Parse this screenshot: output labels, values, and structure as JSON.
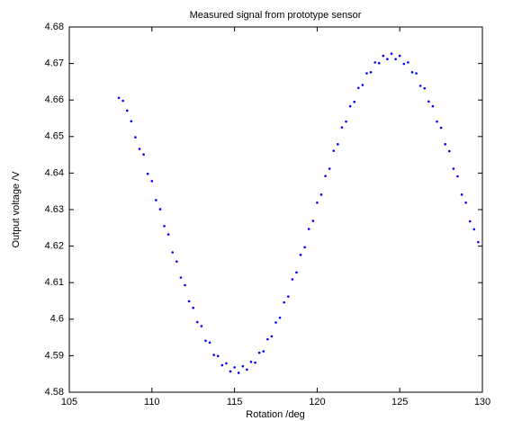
{
  "chart_data": {
    "type": "scatter",
    "title": "Measured signal from prototype sensor",
    "xlabel": "Rotation /deg",
    "ylabel": "Output voltage /V",
    "color": "#0000ff",
    "x": [
      108,
      108.25,
      108.5,
      108.75,
      109,
      109.25,
      109.5,
      109.75,
      110,
      110.25,
      110.5,
      110.75,
      111,
      111.25,
      111.5,
      111.75,
      112,
      112.25,
      112.5,
      112.75,
      113,
      113.25,
      113.5,
      113.75,
      114,
      114.25,
      114.5,
      114.75,
      115,
      115.25,
      115.5,
      115.75,
      116,
      116.25,
      116.5,
      116.75,
      117,
      117.25,
      117.5,
      117.75,
      118,
      118.25,
      118.5,
      118.75,
      119,
      119.25,
      119.5,
      119.75,
      120,
      120.25,
      120.5,
      120.75,
      121,
      121.25,
      121.5,
      121.75,
      122,
      122.25,
      122.5,
      122.75,
      123,
      123.25,
      123.5,
      123.75,
      124,
      124.25,
      124.5,
      124.75,
      125,
      125.25,
      125.5,
      125.75,
      126,
      126.25,
      126.5,
      126.75,
      127,
      127.25,
      127.5,
      127.75,
      128,
      128.25,
      128.5,
      128.75,
      129,
      129.25,
      129.5,
      129.75
    ],
    "values": [
      4.6606,
      4.6598,
      4.6571,
      4.6542,
      4.6498,
      4.6466,
      4.6451,
      4.6398,
      4.6378,
      4.6326,
      4.6301,
      4.6255,
      4.6232,
      4.6183,
      4.6158,
      4.6114,
      4.6093,
      4.6049,
      4.6031,
      4.5992,
      4.5981,
      4.5941,
      4.5936,
      4.5902,
      4.5899,
      4.5874,
      4.5879,
      4.5857,
      4.5868,
      4.5853,
      4.5871,
      4.5862,
      4.5883,
      4.5881,
      4.5908,
      4.5912,
      4.5945,
      4.5953,
      4.5991,
      4.6004,
      4.6046,
      4.6062,
      4.6109,
      4.6128,
      4.6176,
      4.6197,
      4.6247,
      4.6269,
      4.6319,
      4.6341,
      4.6392,
      4.6412,
      4.6461,
      4.6479,
      4.6525,
      4.6541,
      4.6583,
      4.6595,
      4.6633,
      4.6641,
      4.6673,
      4.6676,
      4.6703,
      4.6701,
      4.6721,
      4.6712,
      4.6727,
      4.6712,
      4.6721,
      4.6699,
      4.6703,
      4.6676,
      4.6673,
      4.6639,
      4.6632,
      4.6596,
      4.6583,
      4.6541,
      4.6524,
      4.6479,
      4.646,
      4.6412,
      4.6391,
      4.6341,
      4.6319,
      4.6268,
      4.6246,
      4.6211
    ],
    "xlim": [
      105,
      130
    ],
    "xticks": [
      105,
      110,
      115,
      120,
      125,
      130
    ],
    "ylim": [
      4.58,
      4.68
    ],
    "yticks": [
      4.58,
      4.59,
      4.6,
      4.61,
      4.62,
      4.63,
      4.64,
      4.65,
      4.66,
      4.67,
      4.68
    ]
  }
}
